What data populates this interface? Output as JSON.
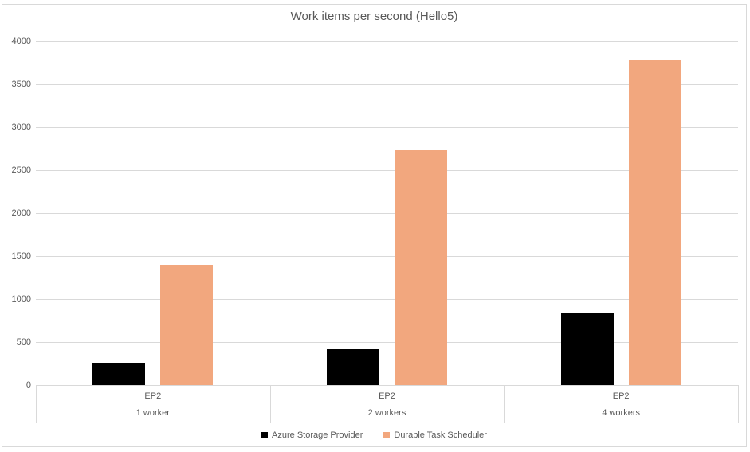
{
  "chart_data": {
    "type": "bar",
    "title": "Work items per second (Hello5)",
    "categories": [
      {
        "top_label": "EP2",
        "bottom_label": "1 worker"
      },
      {
        "top_label": "EP2",
        "bottom_label": "2 workers"
      },
      {
        "top_label": "EP2",
        "bottom_label": "4 workers"
      }
    ],
    "series": [
      {
        "name": "Azure Storage Provider",
        "color": "#000000",
        "values": [
          260,
          420,
          840
        ]
      },
      {
        "name": "Durable Task Scheduler",
        "color": "#F2A77E",
        "values": [
          1400,
          2740,
          3780
        ]
      }
    ],
    "y_axis": {
      "min": 0,
      "max": 4000,
      "tick_step": 500,
      "ticks": [
        0,
        500,
        1000,
        1500,
        2000,
        2500,
        3000,
        3500,
        4000
      ]
    },
    "xlabel": "",
    "ylabel": "",
    "grid": true,
    "legend_position": "bottom"
  },
  "colors": {
    "grid": "#D9D9D9",
    "border": "#D9D9D9",
    "text": "#595959",
    "background": "#FFFFFF"
  }
}
